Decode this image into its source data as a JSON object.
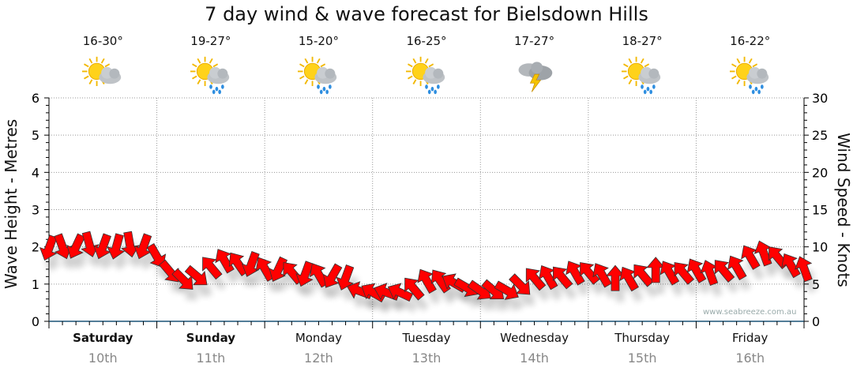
{
  "chart_data": {
    "type": "wind-arrow",
    "title": "7 day wind & wave forecast for Bielsdown Hills",
    "ylabel": "Wave Height - Metres",
    "y2label": "Wind Speed - Knots",
    "ylim": [
      0,
      6
    ],
    "y2lim": [
      0,
      30
    ],
    "yticks": [
      "0",
      "1",
      "2",
      "3",
      "4",
      "5",
      "6"
    ],
    "y2ticks": [
      "0",
      "5",
      "10",
      "15",
      "20",
      "25",
      "30"
    ],
    "grid": true,
    "days": [
      {
        "name": "Saturday",
        "date": "10th",
        "temp": "16-30°",
        "icon": "sun-cloud-icon",
        "bold": true
      },
      {
        "name": "Sunday",
        "date": "11th",
        "temp": "19-27°",
        "icon": "sun-cloud-rain-icon",
        "bold": true
      },
      {
        "name": "Monday",
        "date": "12th",
        "temp": "15-20°",
        "icon": "sun-cloud-rain-icon",
        "bold": false
      },
      {
        "name": "Tuesday",
        "date": "13th",
        "temp": "16-25°",
        "icon": "sun-cloud-rain-icon",
        "bold": false
      },
      {
        "name": "Wednesday",
        "date": "14th",
        "temp": "17-27°",
        "icon": "storm-icon",
        "bold": false
      },
      {
        "name": "Thursday",
        "date": "15th",
        "temp": "18-27°",
        "icon": "sun-cloud-rain-icon",
        "bold": false
      },
      {
        "name": "Friday",
        "date": "16th",
        "temp": "16-22°",
        "icon": "sun-cloud-rain-icon",
        "bold": false
      }
    ],
    "wind_interval_hours": 3,
    "wind_knots": [
      9.8,
      10,
      10,
      10.3,
      10,
      10,
      10.3,
      10,
      8.7,
      6.6,
      5.5,
      6,
      7.3,
      8.2,
      7.8,
      7.6,
      7.1,
      6.9,
      6.6,
      6.3,
      6.3,
      6,
      5.8,
      4.1,
      3.9,
      3.9,
      3.9,
      4.5,
      5.5,
      5.5,
      5.2,
      4.5,
      4.1,
      4.1,
      4.1,
      4.8,
      5.8,
      6,
      6,
      6.6,
      6.6,
      6.3,
      5.8,
      5.8,
      6.3,
      6.9,
      6.6,
      6.6,
      6.9,
      6.6,
      6.9,
      7.3,
      8.7,
      9.2,
      8.7,
      7.6,
      7.1
    ],
    "wind_arrow_deg": [
      200,
      160,
      205,
      165,
      200,
      195,
      170,
      200,
      150,
      140,
      135,
      130,
      320,
      330,
      325,
      200,
      330,
      205,
      320,
      200,
      330,
      210,
      200,
      290,
      300,
      290,
      295,
      320,
      330,
      325,
      300,
      120,
      125,
      130,
      120,
      135,
      320,
      330,
      320,
      330,
      320,
      330,
      0,
      330,
      320,
      0,
      330,
      320,
      330,
      340,
      320,
      330,
      330,
      340,
      320,
      330,
      340
    ],
    "arrow_color": "#ff0000"
  },
  "watermark": "www.seabreeze.com.au"
}
